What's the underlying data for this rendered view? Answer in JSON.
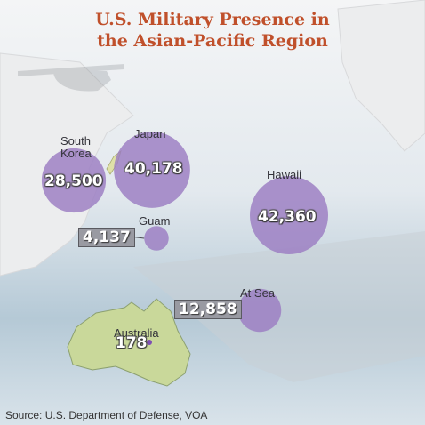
{
  "title_line1": "U.S. Military Presence in",
  "title_line2": "the Asian-Pacific Region",
  "source": "Source: U.S. Department of Defense, VOA",
  "colors": {
    "bubble": "#9b7cc2",
    "land": "#c9d89a",
    "title": "#c0502b",
    "label_box": "#999aa2"
  },
  "chart_data": {
    "type": "bubble-map",
    "title": "U.S. Military Presence in the Asian-Pacific Region",
    "series": [
      {
        "region": "South Korea",
        "label_lines": [
          "South",
          "Korea"
        ],
        "value": 28500,
        "display": "28,500"
      },
      {
        "region": "Japan",
        "label_lines": [
          "Japan"
        ],
        "value": 40178,
        "display": "40,178"
      },
      {
        "region": "Hawaii",
        "label_lines": [
          "Hawaii"
        ],
        "value": 42360,
        "display": "42,360"
      },
      {
        "region": "Guam",
        "label_lines": [
          "Guam"
        ],
        "value": 4137,
        "display": "4,137"
      },
      {
        "region": "At Sea",
        "label_lines": [
          "At Sea"
        ],
        "value": 12858,
        "display": "12,858"
      },
      {
        "region": "Australia",
        "label_lines": [
          "Australia"
        ],
        "value": 178,
        "display": "178"
      }
    ]
  }
}
